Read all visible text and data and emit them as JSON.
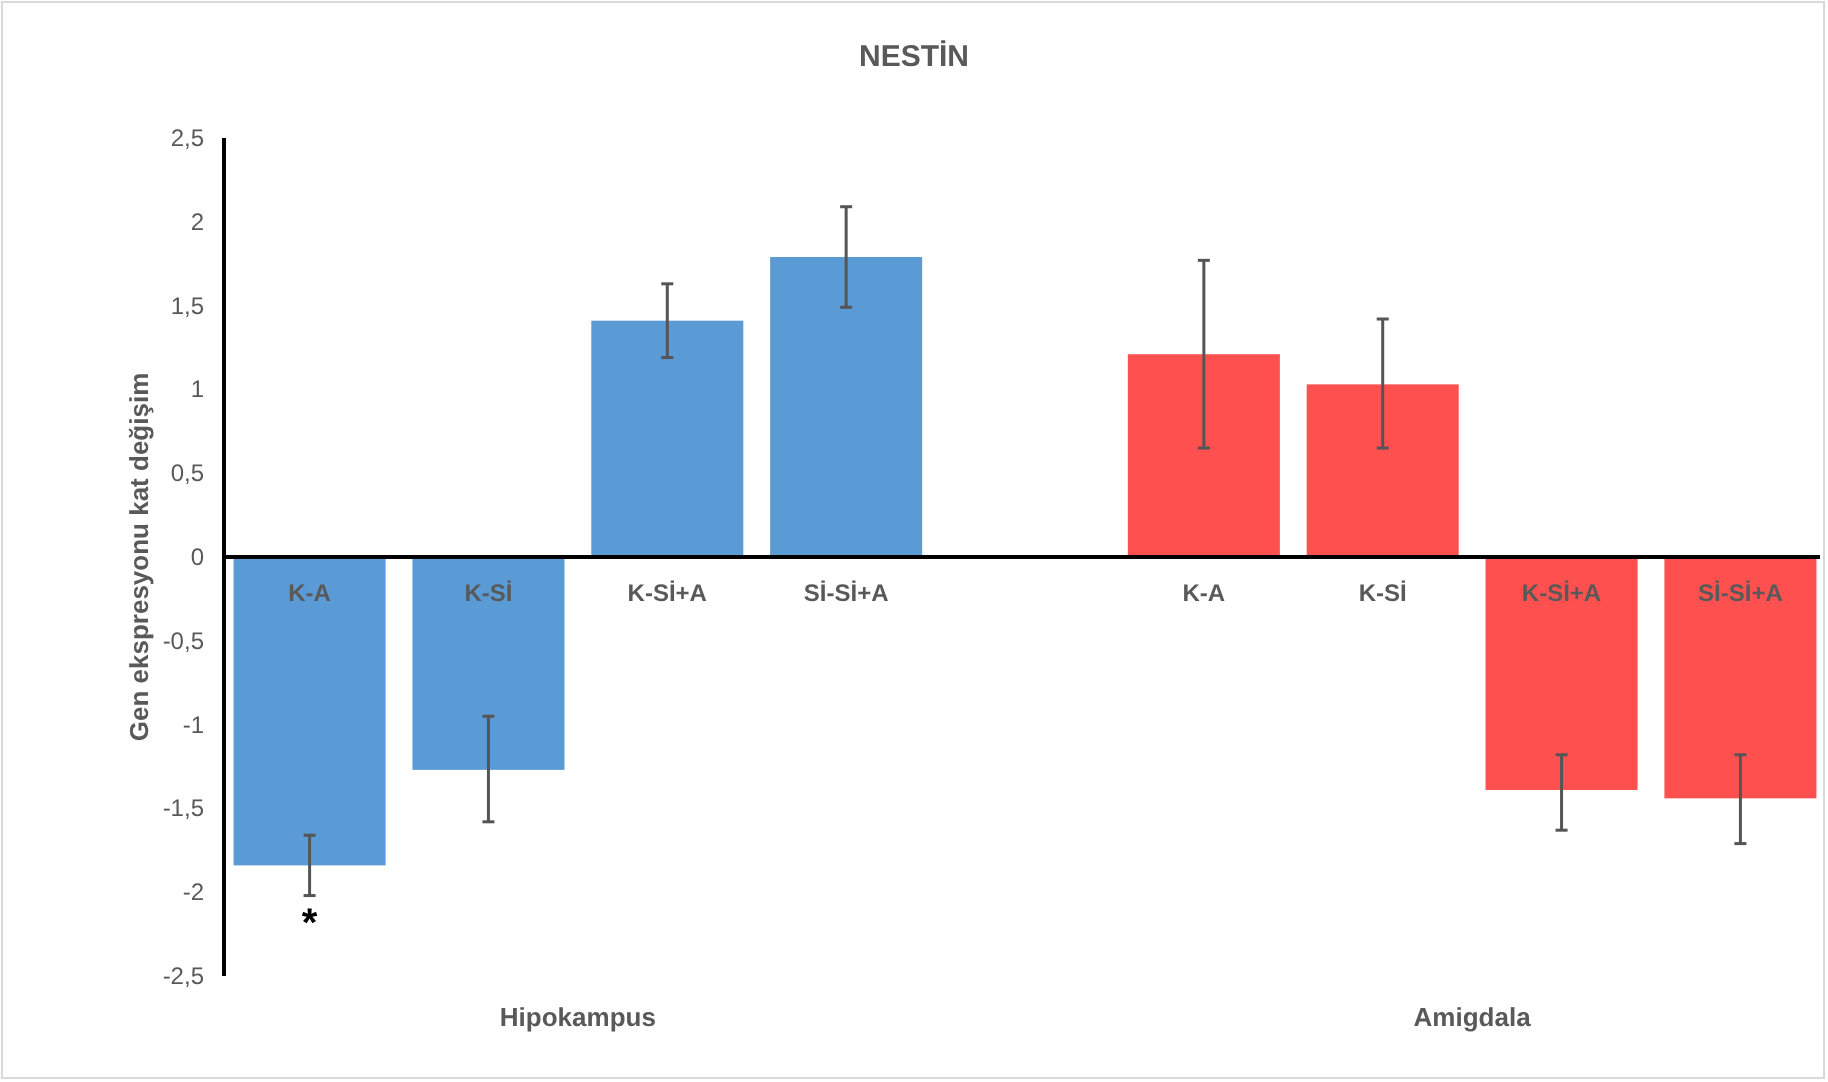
{
  "chart_data": {
    "type": "bar",
    "title": "NESTİN",
    "ylabel": "Gen ekspresyonu kat değişim",
    "categories": [
      "K-A",
      "K-Sİ",
      "K-Sİ+A",
      "Sİ-Sİ+A",
      null,
      "K-A",
      "K-Sİ",
      "K-Sİ+A",
      "Sİ-Sİ+A"
    ],
    "series": [
      {
        "color": "#5b9bd5",
        "values": [
          -1.84,
          -1.27,
          1.41,
          1.79,
          null,
          null,
          null,
          null,
          null
        ],
        "errors": [
          [
            -2.02,
            -1.66
          ],
          [
            -1.58,
            -0.95
          ],
          [
            1.19,
            1.63
          ],
          [
            1.49,
            2.09
          ],
          null,
          null,
          null,
          null,
          null
        ]
      },
      {
        "color": "#ff5050",
        "values": [
          null,
          null,
          null,
          null,
          null,
          1.21,
          1.03,
          -1.39,
          -1.44
        ],
        "errors": [
          null,
          null,
          null,
          null,
          null,
          [
            0.65,
            1.77
          ],
          [
            0.65,
            1.42
          ],
          [
            -1.63,
            -1.18
          ],
          [
            -1.71,
            -1.18
          ]
        ]
      }
    ],
    "ylim": [
      -2.5,
      2.5
    ],
    "yticks": [
      {
        "value": -2.5,
        "label": "-2,5"
      },
      -2,
      {
        "value": -1.5,
        "label": "-1,5"
      },
      -1,
      {
        "value": -0.5,
        "label": "-0,5"
      },
      0,
      {
        "value": 0.5,
        "label": "0,5"
      },
      1,
      {
        "value": 1.5,
        "label": "1,5"
      },
      2,
      {
        "value": 2.5,
        "label": "2,5"
      }
    ],
    "annotations": [
      "Hipokampus",
      "Amigdala",
      {
        "text": "*",
        "x": "K-A",
        "y": -2.02
      }
    ],
    "grid": false
  }
}
